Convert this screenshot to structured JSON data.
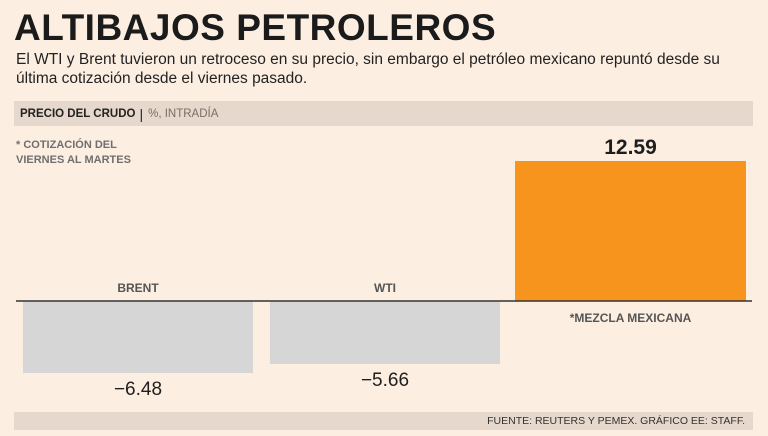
{
  "title": "ALTIBAJOS PETROLEROS",
  "subtitle": "El WTI y Brent tuvieron un retroceso en su precio, sin embargo el petróleo mexicano repuntó desde su última cotización desde el viernes pasado.",
  "header": {
    "label": "PRECIO DEL CRUDO",
    "separator": "|",
    "unit": "%, INTRADÍA"
  },
  "note": {
    "line1": "* COTIZACIÓN DEL",
    "line2": "VIERNES AL MARTES"
  },
  "footer": "FUENTE: REUTERS Y PEMEX. GRÁFICO EE: STAFF.",
  "colors": {
    "background": "#fcefe2",
    "header_bar": "#e6d8cc",
    "negative_bar": "#d6d6d6",
    "positive_bar": "#f7941d",
    "axis": "#333333"
  },
  "chart_data": {
    "type": "bar",
    "categories": [
      "BRENT",
      "WTI",
      "*MEZCLA MEXICANA"
    ],
    "values": [
      -6.48,
      -5.66,
      12.59
    ],
    "value_labels": [
      "−6.48",
      "−5.66",
      "12.59"
    ],
    "ylim": [
      -6.48,
      12.59
    ],
    "grid": false,
    "legend": "none"
  }
}
